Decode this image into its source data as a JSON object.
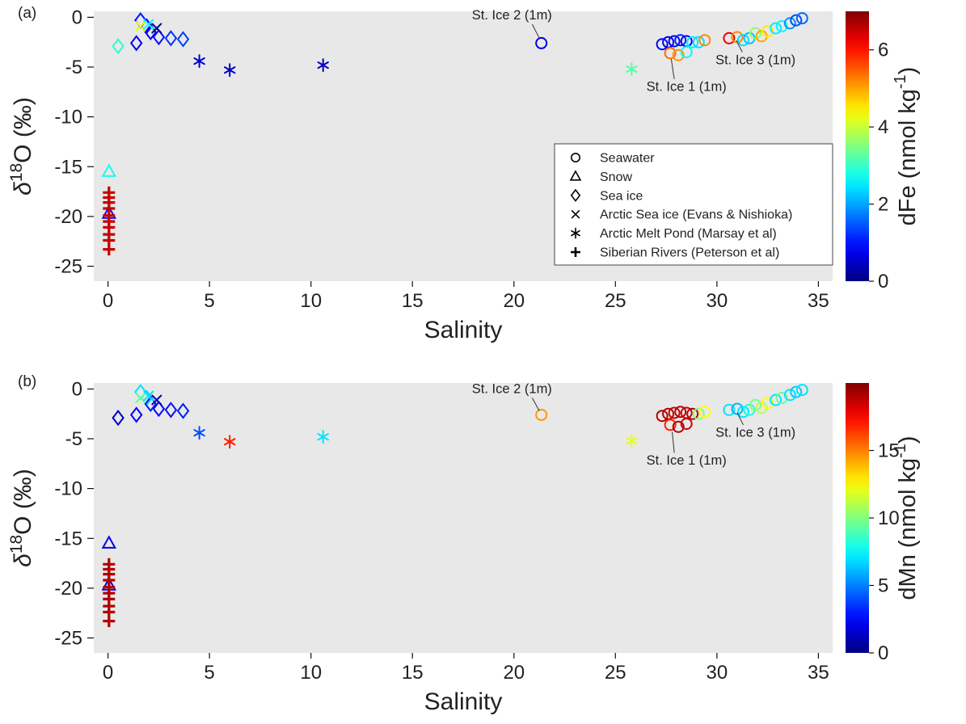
{
  "figure": {
    "bg_color": "#ffffff",
    "plot_bg_color": "#e8e8e8",
    "colormap": "jet"
  },
  "chart_data": [
    {
      "type": "scatter",
      "panel": "(a)",
      "xlabel": "Salinity",
      "ylabel": "δ¹⁸O (‰)",
      "ylabel_parts": [
        "δ",
        "18",
        "O (‰)"
      ],
      "xlim": [
        -0.7,
        35.7
      ],
      "ylim": [
        -26.5,
        0.6
      ],
      "xticks": [
        "0",
        "5",
        "10",
        "15",
        "20",
        "25",
        "30",
        "35"
      ],
      "yticks": [
        "0",
        "-5",
        "-10",
        "-15",
        "-20",
        "-25"
      ],
      "color_variable": "dFe",
      "colorbar": {
        "label": "dFe (nmol kg⁻¹)",
        "label_prefix": "dFe (nmol kg",
        "label_sup": "-1",
        "label_suffix": ")",
        "min": 0,
        "max": 7,
        "ticks": [
          "0",
          "2",
          "4",
          "6"
        ]
      },
      "legend": {
        "entries": [
          {
            "marker": "circle",
            "label": "Seawater"
          },
          {
            "marker": "triangle",
            "label": "Snow"
          },
          {
            "marker": "diamond",
            "label": "Sea ice"
          },
          {
            "marker": "x",
            "label": "Arctic Sea ice (Evans & Nishioka)"
          },
          {
            "marker": "asterisk",
            "label": "Arctic Melt Pond (Marsay et al)"
          },
          {
            "marker": "plus",
            "label": "Siberian Rivers (Peterson et al)"
          }
        ]
      },
      "annotations": [
        {
          "label": "St. Ice 2 (1m)",
          "text_xy": [
            19.9,
            -0.2
          ],
          "line": [
            [
              20.9,
              -0.7
            ],
            [
              21.25,
              -2.1
            ]
          ]
        },
        {
          "label": "St. Ice 1 (1m)",
          "text_xy": [
            28.5,
            -7.4
          ],
          "line": [
            [
              27.9,
              -6.2
            ],
            [
              27.75,
              -4.2
            ]
          ]
        },
        {
          "label": "St. Ice 3 (1m)",
          "text_xy": [
            31.9,
            -4.7
          ],
          "line": [
            [
              31.25,
              -3.5
            ],
            [
              30.95,
              -2.3
            ]
          ]
        }
      ],
      "series": [
        {
          "name": "Seawater",
          "marker": "circle",
          "points": [
            [
              21.35,
              -2.6,
              0.7
            ],
            [
              27.3,
              -2.7,
              0.9
            ],
            [
              27.6,
              -2.5,
              0.7
            ],
            [
              27.9,
              -2.4,
              0.8
            ],
            [
              28.2,
              -2.3,
              1.1
            ],
            [
              28.5,
              -2.4,
              0.9
            ],
            [
              28.8,
              -2.5,
              2.5
            ],
            [
              29.1,
              -2.5,
              2.4
            ],
            [
              29.4,
              -2.3,
              5.2
            ],
            [
              27.7,
              -3.6,
              5.4
            ],
            [
              28.1,
              -3.8,
              5.1
            ],
            [
              28.5,
              -3.5,
              2.6
            ],
            [
              30.6,
              -2.1,
              6.3
            ],
            [
              31.0,
              -2.0,
              5.2
            ],
            [
              31.3,
              -2.3,
              2.4
            ],
            [
              31.6,
              -2.1,
              2.2
            ],
            [
              31.9,
              -1.6,
              3.6
            ],
            [
              32.2,
              -1.9,
              5.0
            ],
            [
              32.5,
              -1.4,
              4.5
            ],
            [
              32.9,
              -1.1,
              2.5
            ],
            [
              33.2,
              -0.9,
              2.6
            ],
            [
              33.6,
              -0.6,
              1.9
            ],
            [
              33.9,
              -0.3,
              1.4
            ],
            [
              34.2,
              -0.1,
              1.6
            ]
          ]
        },
        {
          "name": "Snow",
          "marker": "triangle",
          "points": [
            [
              0.05,
              -15.5,
              2.8
            ],
            [
              0.05,
              -19.7,
              0.9
            ]
          ]
        },
        {
          "name": "Sea ice",
          "marker": "diamond",
          "points": [
            [
              0.5,
              -2.9,
              2.9
            ],
            [
              1.4,
              -2.6,
              0.8
            ],
            [
              1.6,
              -0.3,
              1.0
            ],
            [
              1.9,
              -0.9,
              0.9
            ],
            [
              2.1,
              -1.5,
              0.8
            ],
            [
              2.5,
              -2.0,
              1.0
            ],
            [
              3.1,
              -2.1,
              1.2
            ],
            [
              3.7,
              -2.2,
              1.3
            ]
          ]
        },
        {
          "name": "Arctic Sea ice (Evans & Nishioka)",
          "marker": "x",
          "points": [
            [
              1.6,
              -0.9,
              4.2
            ],
            [
              2.0,
              -0.7,
              2.7
            ],
            [
              2.4,
              -1.1,
              0.2
            ]
          ]
        },
        {
          "name": "Arctic Melt Pond (Marsay et al)",
          "marker": "asterisk",
          "points": [
            [
              4.5,
              -4.4,
              0.5
            ],
            [
              6.0,
              -5.3,
              0.5
            ],
            [
              10.6,
              -4.8,
              0.5
            ],
            [
              25.8,
              -5.2,
              3.2
            ]
          ]
        },
        {
          "name": "Siberian Rivers (Peterson et al)",
          "marker": "plus",
          "points": [
            [
              0.05,
              -17.6,
              6.5
            ],
            [
              0.05,
              -18.1,
              6.5
            ],
            [
              0.05,
              -18.6,
              6.5
            ],
            [
              0.05,
              -19.2,
              6.5
            ],
            [
              0.05,
              -19.9,
              6.5
            ],
            [
              0.05,
              -20.5,
              6.5
            ],
            [
              0.05,
              -21.1,
              6.5
            ],
            [
              0.05,
              -21.8,
              6.5
            ],
            [
              0.05,
              -22.4,
              6.5
            ],
            [
              0.05,
              -23.3,
              6.5
            ]
          ]
        }
      ]
    },
    {
      "type": "scatter",
      "panel": "(b)",
      "xlabel": "Salinity",
      "ylabel": "δ¹⁸O (‰)",
      "ylabel_parts": [
        "δ",
        "18",
        "O (‰)"
      ],
      "xlim": [
        -0.7,
        35.7
      ],
      "ylim": [
        -26.5,
        0.6
      ],
      "xticks": [
        "0",
        "5",
        "10",
        "15",
        "20",
        "25",
        "30",
        "35"
      ],
      "yticks": [
        "0",
        "-5",
        "-10",
        "-15",
        "-20",
        "-25"
      ],
      "color_variable": "dMn",
      "colorbar": {
        "label": "dMn (nmol kg⁻¹)",
        "label_prefix": "dMn (nmol kg",
        "label_sup": "-1",
        "label_suffix": ")",
        "min": 0,
        "max": 20,
        "ticks": [
          "0",
          "5",
          "10",
          "15"
        ]
      },
      "annotations": [
        {
          "label": "St. Ice 2 (1m)",
          "text_xy": [
            19.9,
            -0.4
          ],
          "line": [
            [
              20.9,
              -0.9
            ],
            [
              21.25,
              -2.2
            ]
          ]
        },
        {
          "label": "St. Ice 1 (1m)",
          "text_xy": [
            28.5,
            -7.6
          ],
          "line": [
            [
              27.9,
              -6.4
            ],
            [
              27.8,
              -4.3
            ]
          ]
        },
        {
          "label": "St. Ice 3 (1m)",
          "text_xy": [
            31.9,
            -4.8
          ],
          "line": [
            [
              31.3,
              -3.6
            ],
            [
              31.0,
              -2.4
            ]
          ]
        }
      ],
      "series": [
        {
          "name": "Seawater",
          "marker": "circle",
          "points": [
            [
              21.35,
              -2.6,
              14.5
            ],
            [
              27.3,
              -2.7,
              19
            ],
            [
              27.6,
              -2.5,
              19
            ],
            [
              27.9,
              -2.4,
              18.5
            ],
            [
              28.2,
              -2.3,
              19
            ],
            [
              28.5,
              -2.4,
              18.5
            ],
            [
              28.8,
              -2.5,
              19
            ],
            [
              29.1,
              -2.5,
              10
            ],
            [
              29.4,
              -2.3,
              12.5
            ],
            [
              27.7,
              -3.6,
              17
            ],
            [
              28.1,
              -3.8,
              19
            ],
            [
              28.5,
              -3.5,
              18.5
            ],
            [
              30.6,
              -2.1,
              7
            ],
            [
              31.0,
              -2.0,
              6
            ],
            [
              31.3,
              -2.3,
              7
            ],
            [
              31.6,
              -2.1,
              8
            ],
            [
              31.9,
              -1.6,
              10
            ],
            [
              32.2,
              -1.9,
              11
            ],
            [
              32.5,
              -1.4,
              12.5
            ],
            [
              32.9,
              -1.1,
              7
            ],
            [
              33.2,
              -0.9,
              9.5
            ],
            [
              33.6,
              -0.6,
              7
            ],
            [
              33.9,
              -0.3,
              6.5
            ],
            [
              34.2,
              -0.1,
              7
            ]
          ]
        },
        {
          "name": "Snow",
          "marker": "triangle",
          "points": [
            [
              0.05,
              -15.5,
              2.0
            ],
            [
              0.05,
              -19.7,
              1.5
            ]
          ]
        },
        {
          "name": "Sea ice",
          "marker": "diamond",
          "points": [
            [
              0.5,
              -2.9,
              1.5
            ],
            [
              1.4,
              -2.6,
              2.5
            ],
            [
              1.6,
              -0.3,
              7.0
            ],
            [
              1.9,
              -0.9,
              6.5
            ],
            [
              2.1,
              -1.5,
              3.0
            ],
            [
              2.5,
              -2.0,
              2.5
            ],
            [
              3.1,
              -2.1,
              2.8
            ],
            [
              3.7,
              -2.2,
              3.0
            ]
          ]
        },
        {
          "name": "Arctic Sea ice (Evans & Nishioka)",
          "marker": "x",
          "points": [
            [
              1.6,
              -0.9,
              9.5
            ],
            [
              2.0,
              -0.7,
              7.0
            ],
            [
              2.4,
              -1.1,
              1.0
            ]
          ]
        },
        {
          "name": "Arctic Melt Pond (Marsay et al)",
          "marker": "asterisk",
          "points": [
            [
              4.5,
              -4.4,
              4.0
            ],
            [
              6.0,
              -5.3,
              17.0
            ],
            [
              10.6,
              -4.8,
              7.0
            ],
            [
              25.8,
              -5.2,
              12.0
            ]
          ]
        },
        {
          "name": "Siberian Rivers (Peterson et al)",
          "marker": "plus",
          "points": [
            [
              0.05,
              -17.6,
              19
            ],
            [
              0.05,
              -18.1,
              19
            ],
            [
              0.05,
              -18.6,
              19
            ],
            [
              0.05,
              -19.2,
              19
            ],
            [
              0.05,
              -19.9,
              19
            ],
            [
              0.05,
              -20.5,
              19
            ],
            [
              0.05,
              -21.1,
              19
            ],
            [
              0.05,
              -21.8,
              19
            ],
            [
              0.05,
              -22.4,
              19
            ],
            [
              0.05,
              -23.3,
              19
            ]
          ]
        }
      ]
    }
  ]
}
